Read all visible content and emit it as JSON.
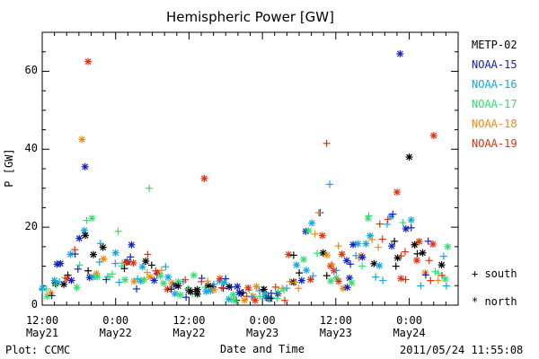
{
  "chart_data": {
    "type": "scatter",
    "title": "Hemispheric Power [GW]",
    "xlabel": "Date and Time",
    "ylabel": "P [GW]",
    "ylim": [
      0,
      70
    ],
    "xlim": [
      0,
      68
    ],
    "x_tick_values": [
      0,
      12,
      24,
      36,
      48,
      60
    ],
    "x_tick_labels": [
      [
        "12:00",
        "May21"
      ],
      [
        "0:00",
        "May22"
      ],
      [
        "12:00",
        "May22"
      ],
      [
        "0:00",
        "May23"
      ],
      [
        "12:00",
        "May23"
      ],
      [
        "0:00",
        "May24"
      ]
    ],
    "y_tick_values": [
      0,
      20,
      40,
      60
    ],
    "y_tick_labels": [
      "0",
      "20",
      "40",
      "60"
    ],
    "grid": false,
    "series": [
      {
        "name": "METP-02",
        "color": "#000000"
      },
      {
        "name": "NOAA-15",
        "color": "#1020c0"
      },
      {
        "name": "NOAA-16",
        "color": "#12a6e0"
      },
      {
        "name": "NOAA-17",
        "color": "#30e070"
      },
      {
        "name": "NOAA-18",
        "color": "#f08a10"
      },
      {
        "name": "NOAA-19",
        "color": "#e03010"
      }
    ],
    "marker_legend": [
      {
        "symbol": "+",
        "label": "south"
      },
      {
        "symbol": "*",
        "label": "north"
      }
    ],
    "notable_points": [
      {
        "series": "NOAA-19",
        "x": 7.5,
        "y": 62.5,
        "hemisphere": "north"
      },
      {
        "series": "NOAA-15",
        "x": 58.5,
        "y": 64.5,
        "hemisphere": "north"
      },
      {
        "series": "NOAA-19",
        "x": 64,
        "y": 43.5,
        "hemisphere": "north"
      },
      {
        "series": "NOAA-18",
        "x": 6.5,
        "y": 42.5,
        "hemisphere": "north"
      },
      {
        "series": "NOAA-19",
        "x": 46.5,
        "y": 41.5,
        "hemisphere": "south"
      },
      {
        "series": "METP-02",
        "x": 60,
        "y": 38,
        "hemisphere": "north"
      },
      {
        "series": "NOAA-15",
        "x": 7,
        "y": 35.5,
        "hemisphere": "north"
      },
      {
        "series": "NOAA-17",
        "x": 17.5,
        "y": 30,
        "hemisphere": "south"
      },
      {
        "series": "NOAA-19",
        "x": 26.5,
        "y": 32.5,
        "hemisphere": "north"
      },
      {
        "series": "NOAA-16",
        "x": 47,
        "y": 31,
        "hemisphere": "south"
      },
      {
        "series": "NOAA-19",
        "x": 58,
        "y": 29,
        "hemisphere": "north"
      }
    ]
  },
  "footer": {
    "left": "Plot: CCMC",
    "right": "2011/05/24 11:55:08"
  }
}
